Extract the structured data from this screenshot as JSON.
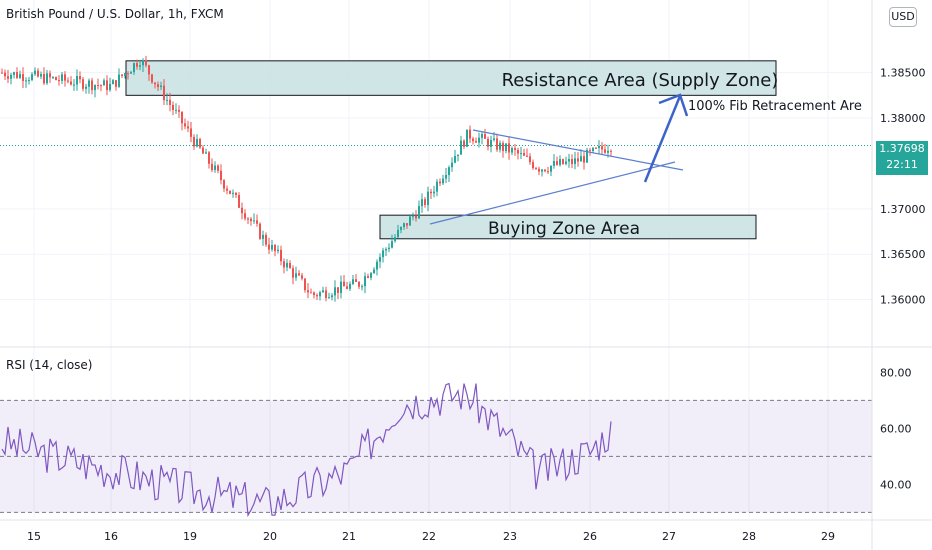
{
  "header": {
    "symbol_title": "British Pound / U.S. Dollar, 1h, FXCM",
    "currency": "USD"
  },
  "last_price": {
    "value": "1.37698",
    "countdown": "22:11"
  },
  "rsi": {
    "title": "RSI (14, close)",
    "upper": 70,
    "lower": 30,
    "mid": 50,
    "ticks": [
      "80.00",
      "60.00",
      "40.00"
    ]
  },
  "annotations": {
    "resistance": "Resistance Area  (Supply Zone)",
    "fib": "100% Fib Retracement Are",
    "buying": "Buying Zone Area"
  },
  "colors": {
    "up": "#26a69a",
    "down": "#ef5350",
    "zone": "#c8e0e0",
    "trend": "#5b7fcf",
    "rsi": "#7e57c2"
  },
  "chart_data": [
    {
      "type": "candlestick",
      "title": "British Pound / U.S. Dollar, 1h, FXCM",
      "x_ticks": [
        "15",
        "16",
        "19",
        "20",
        "21",
        "22",
        "23",
        "26",
        "27",
        "28",
        "29"
      ],
      "y_ticks": [
        "1.38500",
        "1.38000",
        "1.37000",
        "1.36500",
        "1.36000"
      ],
      "ylim": [
        1.355,
        1.393
      ],
      "last_value": 1.37698,
      "keypoints": [
        {
          "x": "15",
          "close": 1.385
        },
        {
          "x": "16",
          "close": 1.3835
        },
        {
          "x": "16",
          "close": 1.3865
        },
        {
          "x": "19",
          "close": 1.3765
        },
        {
          "x": "20",
          "close": 1.3665
        },
        {
          "x": "20",
          "close": 1.3605
        },
        {
          "x": "21",
          "close": 1.3618
        },
        {
          "x": "21",
          "close": 1.3665
        },
        {
          "x": "22",
          "close": 1.3708
        },
        {
          "x": "22",
          "close": 1.3782
        },
        {
          "x": "23",
          "close": 1.3762
        },
        {
          "x": "23",
          "close": 1.3745
        },
        {
          "x": "26",
          "close": 1.3752
        },
        {
          "x": "26",
          "close": 1.377
        }
      ],
      "zones": [
        {
          "name": "Resistance Area  (Supply Zone)",
          "from": 1.3825,
          "to": 1.3863
        },
        {
          "name": "Buying Zone Area",
          "from": 1.3667,
          "to": 1.3693
        }
      ],
      "grid": true
    },
    {
      "type": "line",
      "title": "RSI (14, close)",
      "y_ticks": [
        "80.00",
        "60.00",
        "40.00"
      ],
      "ylim": [
        28,
        88
      ],
      "bands": [
        30,
        70
      ],
      "keypoints": [
        {
          "x": "15",
          "y": 55
        },
        {
          "x": "19",
          "y": 38
        },
        {
          "x": "20",
          "y": 33
        },
        {
          "x": "21",
          "y": 45
        },
        {
          "x": "22",
          "y": 69
        },
        {
          "x": "22",
          "y": 73
        },
        {
          "x": "23",
          "y": 60
        },
        {
          "x": "23",
          "y": 44
        },
        {
          "x": "26",
          "y": 52
        },
        {
          "x": "26",
          "y": 59
        }
      ]
    }
  ]
}
